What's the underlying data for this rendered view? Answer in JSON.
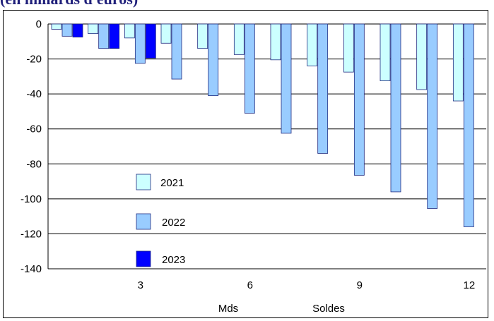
{
  "header": {
    "title_partial": "(en miliards d'euros)"
  },
  "chart_data": {
    "type": "bar",
    "categories": [
      "1",
      "2",
      "3",
      "4",
      "5",
      "6",
      "7",
      "8",
      "9",
      "10",
      "11",
      "12"
    ],
    "x_tick_labels": {
      "3": "3",
      "6": "6",
      "9": "9",
      "12": "12"
    },
    "series": [
      {
        "name": "2021",
        "color": "#ccffff",
        "values": [
          -3,
          -5.5,
          -8,
          -11,
          -14,
          -17.5,
          -20.5,
          -24,
          -27.5,
          -32.5,
          -37.5,
          -44
        ]
      },
      {
        "name": "2022",
        "color": "#99ccff",
        "values": [
          -7,
          -14,
          -22.5,
          -31.5,
          -41,
          -51,
          -62.5,
          -74,
          -86.5,
          -96,
          -105.5,
          -116
        ]
      },
      {
        "name": "2023",
        "color": "#0000ff",
        "values": [
          -7.5,
          -14,
          -19.5,
          null,
          null,
          null,
          null,
          null,
          null,
          null,
          null,
          null
        ]
      }
    ],
    "ylim": [
      -140,
      0
    ],
    "yticks": [
      0,
      -20,
      -40,
      -60,
      -80,
      -100,
      -120,
      -140
    ],
    "xlabel_left": "Mds",
    "xlabel_right": "Soldes",
    "grid": true,
    "legend_position": "lower-left"
  }
}
